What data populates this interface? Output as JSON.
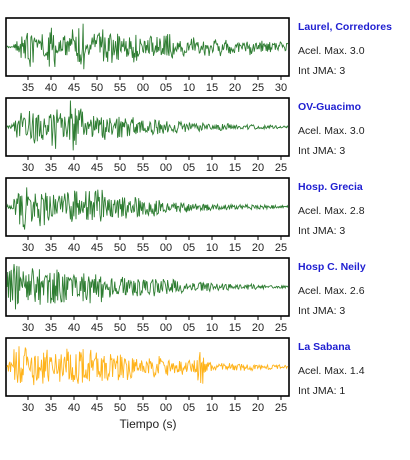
{
  "colors": {
    "blue": "#1f1fd1",
    "green": "#2e7d32",
    "orange": "#ffb31a",
    "frame": "#000000",
    "text": "#222222"
  },
  "xlabel": "Tiempo (s)",
  "chart_data": [
    {
      "type": "line",
      "station": "Laurel, Corredores",
      "accel_label": "Acel. Max. 3.0",
      "jma_label": "Int JMA: 3",
      "color": "#2e7d32",
      "x_ticks": [
        "35",
        "40",
        "45",
        "50",
        "55",
        "00",
        "05",
        "10",
        "15",
        "20",
        "25",
        "30"
      ],
      "series": [
        {
          "values": [
            0.05,
            0.3,
            -0.6,
            0.9,
            -0.4,
            0.7,
            -0.8,
            0.3,
            0.5,
            -0.9,
            1.0,
            -0.3,
            0.6,
            -0.7,
            0.8,
            -0.5,
            0.4,
            -0.6,
            0.7,
            -0.3,
            0.5,
            -0.4,
            0.6,
            -0.5,
            0.3,
            -0.4,
            0.5,
            -0.3,
            0.4,
            -0.3,
            0.35,
            -0.3,
            0.3,
            -0.25,
            0.3,
            -0.2,
            0.25,
            -0.2,
            0.2,
            -0.15
          ]
        }
      ]
    },
    {
      "type": "line",
      "station": "OV-Guacimo",
      "accel_label": "Acel. Max. 3.0",
      "jma_label": "Int JMA: 3",
      "color": "#2e7d32",
      "x_ticks": [
        "30",
        "35",
        "40",
        "45",
        "50",
        "55",
        "00",
        "05",
        "10",
        "15",
        "20",
        "25"
      ],
      "series": [
        {
          "values": [
            0.1,
            -0.4,
            0.6,
            -0.8,
            0.7,
            -0.5,
            0.9,
            -0.7,
            0.6,
            -1.0,
            0.8,
            -0.4,
            0.6,
            -0.6,
            0.5,
            -0.5,
            0.4,
            -0.45,
            0.35,
            -0.3,
            0.3,
            -0.35,
            0.25,
            -0.2,
            0.25,
            -0.2,
            0.15,
            -0.2,
            0.15,
            -0.1,
            0.15,
            -0.12,
            0.1,
            -0.1,
            0.1,
            -0.08,
            0.1,
            -0.08,
            0.06,
            -0.05
          ]
        }
      ]
    },
    {
      "type": "line",
      "station": "Hosp. Grecia",
      "accel_label": "Acel. Max. 2.8",
      "jma_label": "Int JMA: 3",
      "color": "#2e7d32",
      "x_ticks": [
        "30",
        "35",
        "40",
        "45",
        "50",
        "55",
        "00",
        "05",
        "10",
        "15",
        "20",
        "25"
      ],
      "series": [
        {
          "values": [
            0.1,
            -0.7,
            0.9,
            -0.6,
            0.8,
            -0.9,
            0.7,
            -0.5,
            0.6,
            -0.7,
            0.5,
            -0.6,
            0.9,
            -0.8,
            0.5,
            -0.4,
            0.5,
            -0.35,
            0.4,
            -0.3,
            0.35,
            -0.3,
            0.25,
            -0.25,
            0.2,
            -0.2,
            0.2,
            -0.15,
            0.18,
            -0.15,
            0.12,
            -0.12,
            0.1,
            -0.1,
            0.1,
            -0.08,
            0.08,
            -0.07,
            0.06,
            -0.05
          ]
        }
      ]
    },
    {
      "type": "line",
      "station": "Hosp C. Neily",
      "accel_label": "Acel. Max. 2.6",
      "jma_label": "Int JMA: 3",
      "color": "#2e7d32",
      "x_ticks": [
        "30",
        "35",
        "40",
        "45",
        "50",
        "55",
        "00",
        "05",
        "10",
        "15",
        "20",
        "25"
      ],
      "series": [
        {
          "values": [
            0.9,
            -1.0,
            0.6,
            -0.7,
            0.8,
            -0.6,
            0.7,
            -0.8,
            0.6,
            -0.5,
            0.7,
            -0.6,
            0.5,
            -0.6,
            0.5,
            -0.4,
            0.5,
            -0.4,
            0.4,
            -0.35,
            0.35,
            -0.3,
            0.3,
            -0.3,
            0.25,
            -0.25,
            0.2,
            -0.2,
            0.2,
            -0.15,
            0.15,
            -0.15,
            0.12,
            -0.1,
            0.12,
            -0.1,
            0.08,
            -0.08,
            0.06,
            -0.05
          ]
        }
      ]
    },
    {
      "type": "line",
      "station": "La Sabana",
      "accel_label": "Acel. Max. 1.4",
      "jma_label": "Int JMA: 1",
      "color": "#ffb31a",
      "x_ticks": [
        "30",
        "35",
        "40",
        "45",
        "50",
        "55",
        "00",
        "05",
        "10",
        "15",
        "20",
        "25"
      ],
      "series": [
        {
          "values": [
            0.2,
            -0.9,
            1.0,
            -0.8,
            0.9,
            -0.7,
            0.8,
            -0.9,
            0.7,
            -0.6,
            0.8,
            -0.7,
            0.6,
            -0.7,
            0.6,
            -0.5,
            0.5,
            -0.6,
            0.45,
            -0.4,
            0.4,
            -0.45,
            0.35,
            -0.3,
            0.3,
            -0.3,
            0.25,
            -0.7,
            0.25,
            -0.2,
            0.2,
            -0.2,
            0.15,
            -0.15,
            0.15,
            -0.12,
            0.1,
            -0.1,
            0.08,
            -0.06
          ]
        }
      ]
    }
  ]
}
